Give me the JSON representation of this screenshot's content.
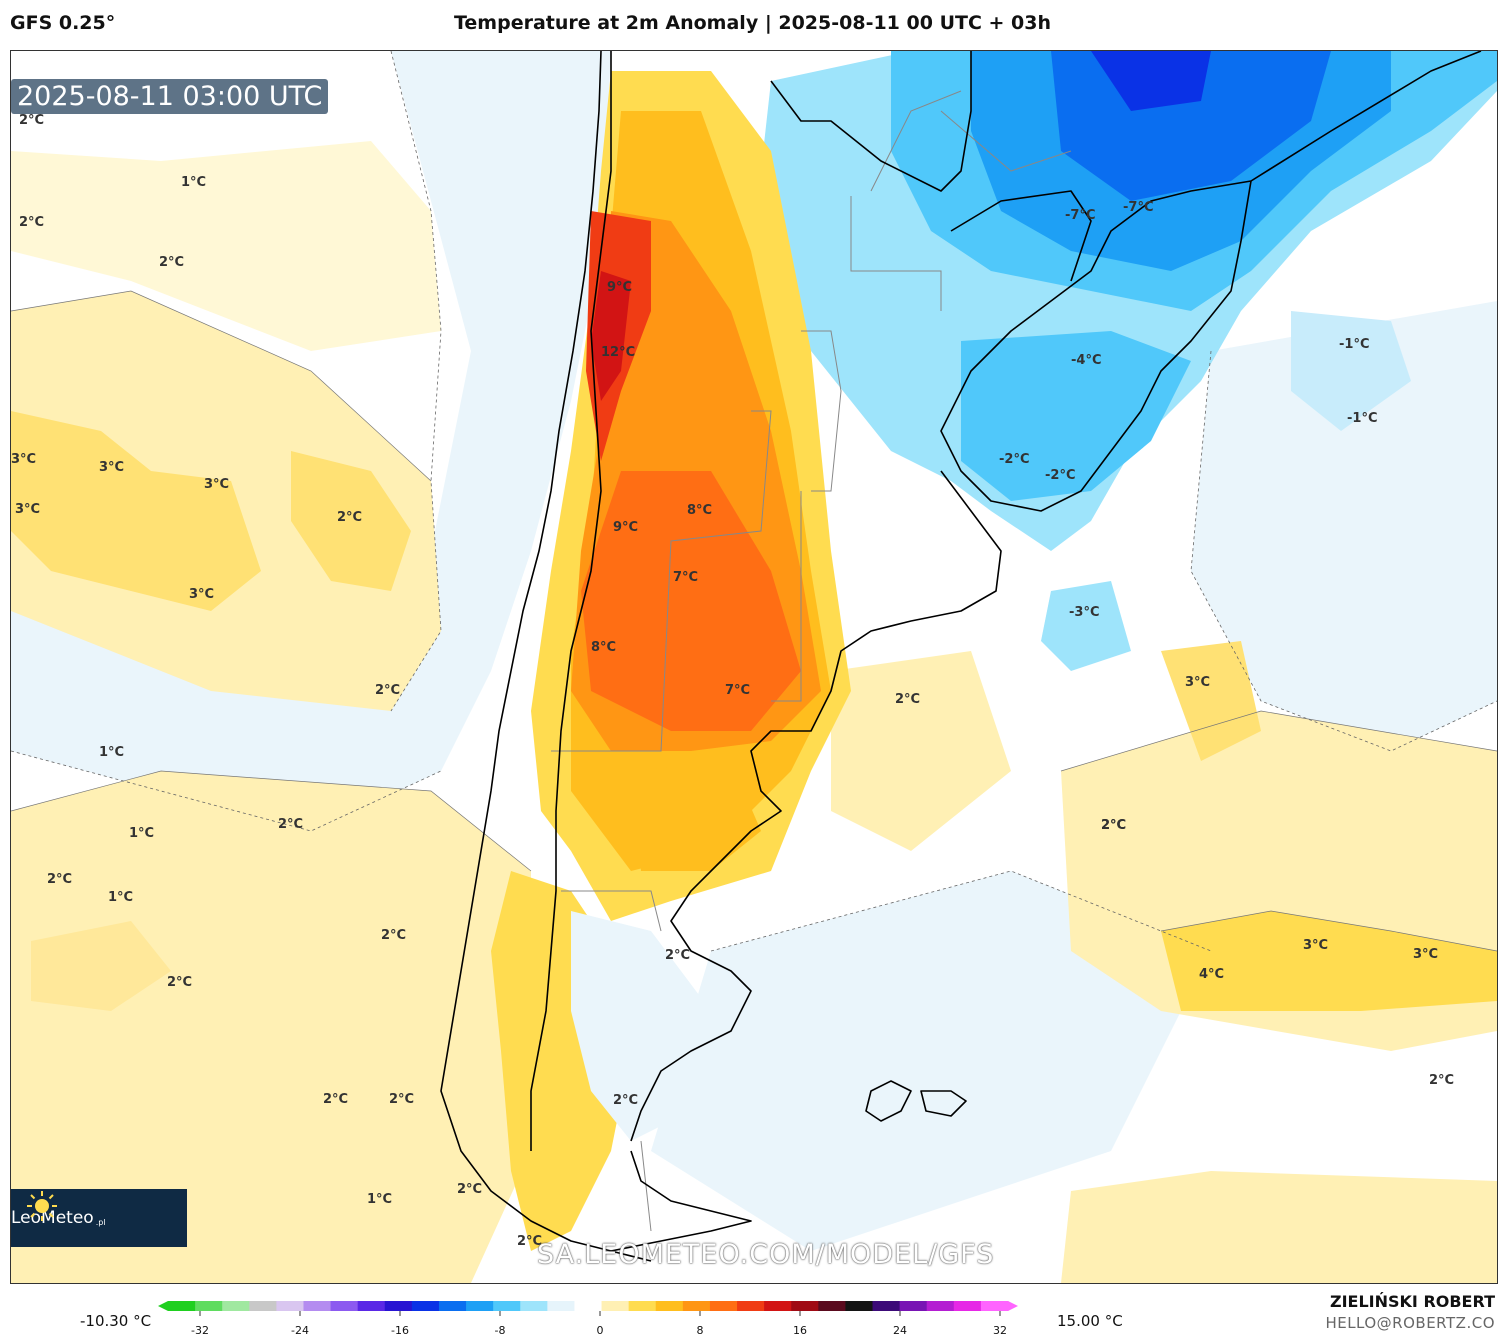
{
  "header": {
    "model": "GFS 0.25°",
    "title": "Temperature at 2m Anomaly | 2025-08-11 00 UTC + 03h"
  },
  "timestamp": "2025-08-11 03:00 UTC",
  "watermark": "SA.LEOMETEO.COM/MODEL/GFS",
  "brand": {
    "name": "LeoMeteo",
    "suffix": ".pl"
  },
  "author": {
    "name": "ZIELIŃSKI ROBERT",
    "email": "HELLO@ROBERTZ.CO"
  },
  "scale": {
    "min_label": "-10.30 °C",
    "max_label": "15.00 °C",
    "ticks": [
      "-32",
      "-24",
      "-16",
      "-8",
      "0",
      "8",
      "16",
      "24",
      "32"
    ],
    "colors": [
      "#1fcf1f",
      "#5fdc5f",
      "#a0e8a0",
      "#c8c8c8",
      "#d9c6f0",
      "#b48cf0",
      "#8c5af0",
      "#5a28e6",
      "#2814d2",
      "#0a32e6",
      "#0a6ef0",
      "#1ea0f5",
      "#50c8fa",
      "#9ee4fb",
      "#e6f4fb",
      "#ffffff",
      "#fff0b4",
      "#ffdc50",
      "#ffbe1e",
      "#ff9614",
      "#ff6e14",
      "#f03c14",
      "#d21414",
      "#a00a14",
      "#5a0a1e",
      "#141414",
      "#3c0a78",
      "#7814b4",
      "#b41ed2",
      "#e628e6",
      "#ff64ff"
    ]
  },
  "map_labels": [
    {
      "t": "2°C"
    },
    {
      "t": "1°C"
    },
    {
      "t": "2°C"
    },
    {
      "t": "2°C"
    },
    {
      "t": "3°C"
    },
    {
      "t": "3°C"
    },
    {
      "t": "3°C"
    },
    {
      "t": "3°C"
    },
    {
      "t": "2°C"
    },
    {
      "t": "3°C"
    },
    {
      "t": "2°C"
    },
    {
      "t": "1°C"
    },
    {
      "t": "1°C"
    },
    {
      "t": "2°C"
    },
    {
      "t": "2°C"
    },
    {
      "t": "1°C"
    },
    {
      "t": "2°C"
    },
    {
      "t": "2°C"
    },
    {
      "t": "2°C"
    },
    {
      "t": "2°C"
    },
    {
      "t": "1°C"
    },
    {
      "t": "2°C"
    },
    {
      "t": "9°C"
    },
    {
      "t": "12°C"
    },
    {
      "t": "9°C"
    },
    {
      "t": "8°C"
    },
    {
      "t": "7°C"
    },
    {
      "t": "8°C"
    },
    {
      "t": "7°C"
    },
    {
      "t": "-7°C"
    },
    {
      "t": "-7°C"
    },
    {
      "t": "-4°C"
    },
    {
      "t": "-2°C"
    },
    {
      "t": "-2°C"
    },
    {
      "t": "-3°C"
    },
    {
      "t": "-1°C"
    },
    {
      "t": "-1°C"
    },
    {
      "t": "2°C"
    },
    {
      "t": "2°C"
    },
    {
      "t": "2°C"
    },
    {
      "t": "2°C"
    },
    {
      "t": "2°C"
    },
    {
      "t": "3°C"
    },
    {
      "t": "2°C"
    },
    {
      "t": "4°C"
    },
    {
      "t": "3°C"
    },
    {
      "t": "3°C"
    },
    {
      "t": "2°C"
    }
  ]
}
